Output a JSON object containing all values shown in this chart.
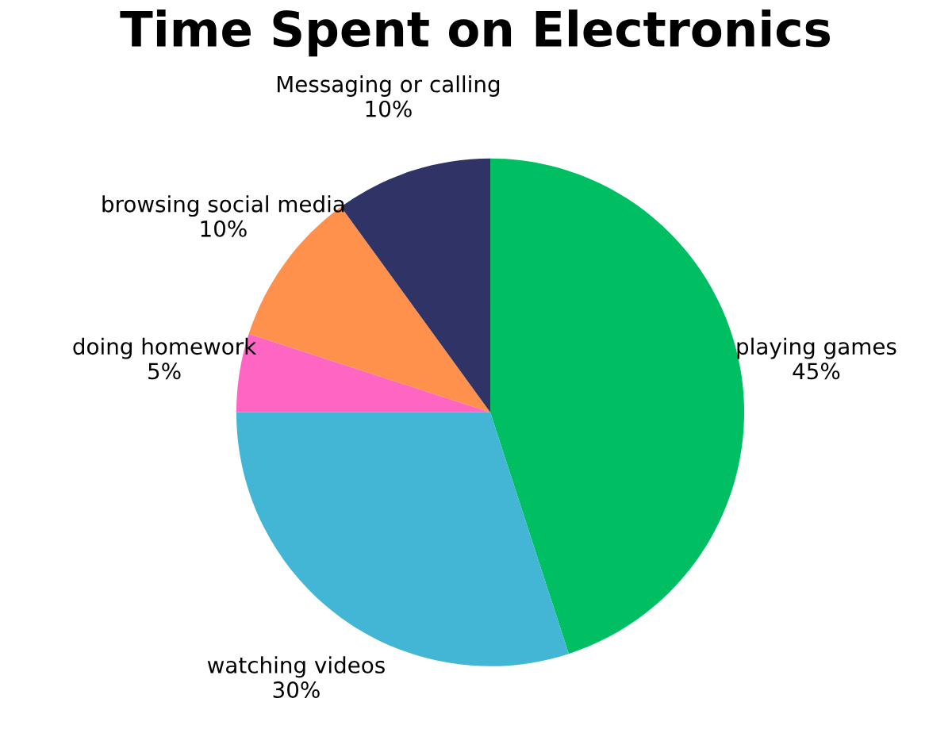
{
  "chart_data": {
    "type": "pie",
    "title": "Time Spent on Electronics",
    "categories": [
      "playing games",
      "watching videos",
      "doing homework",
      "browsing social media",
      "Messaging or calling"
    ],
    "values": [
      45,
      30,
      5,
      10,
      10
    ],
    "value_labels": [
      "45%",
      "30%",
      "5%",
      "10%",
      "10%"
    ],
    "colors": [
      "#00bf63",
      "#43b6d6",
      "#ff66c4",
      "#ff914d",
      "#2f3366"
    ],
    "legend": false
  }
}
